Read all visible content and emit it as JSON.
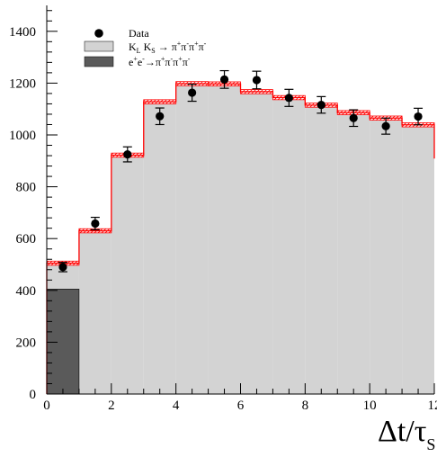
{
  "chart_data": {
    "type": "bar",
    "xlabel": "Δt/τ",
    "xlabel_sub": "S",
    "ylabel": "",
    "xlim": [
      0,
      12
    ],
    "ylim": [
      0,
      1500
    ],
    "x_ticks": [
      0,
      2,
      4,
      6,
      8,
      10,
      12
    ],
    "x_tick_labels": [
      "0",
      "2",
      "4",
      "6",
      "8",
      "10",
      "12"
    ],
    "y_ticks": [
      0,
      200,
      400,
      600,
      800,
      1000,
      1200,
      1400
    ],
    "y_tick_labels": [
      "0",
      "200",
      "400",
      "600",
      "800",
      "1000",
      "1200",
      "1400"
    ],
    "bin_edges": [
      0,
      1,
      2,
      3,
      4,
      5,
      6,
      7,
      8,
      9,
      10,
      11,
      12
    ],
    "series": [
      {
        "name": "Data",
        "kind": "points",
        "x": [
          0.5,
          1.5,
          2.5,
          3.5,
          4.5,
          5.5,
          6.5,
          7.5,
          8.5,
          9.5,
          10.5,
          11.5
        ],
        "values": [
          490,
          658,
          925,
          1072,
          1163,
          1214,
          1212,
          1143,
          1116,
          1065,
          1034,
          1071
        ],
        "errors": [
          18,
          24,
          29,
          32,
          33,
          34,
          34,
          33,
          32,
          32,
          31,
          32
        ]
      },
      {
        "name": "K_L K_S → π⁺π⁻π⁺π⁻",
        "kind": "histogram",
        "values": [
          505,
          630,
          922,
          1128,
          1198,
          1197,
          1167,
          1144,
          1115,
          1086,
          1065,
          1039
        ],
        "band": 8
      },
      {
        "name": "e⁺e⁻→π⁺π⁻π⁺π⁻",
        "kind": "histogram",
        "values": [
          405,
          0,
          0,
          0,
          0,
          0,
          0,
          0,
          0,
          0,
          0,
          0
        ]
      }
    ],
    "legend": {
      "placement": "top-left",
      "entries": [
        {
          "label": "Data",
          "symbol": "marker"
        },
        {
          "label": "K_L K_S → π⁺π⁻π⁺π⁻",
          "symbol": "light-box"
        },
        {
          "label": "e⁺e⁻→π⁺π⁻π⁺π⁻",
          "symbol": "dark-box"
        }
      ]
    },
    "colors": {
      "signal_fill": "#d3d3d3",
      "background_fill": "#5a5a5a",
      "model_line": "#ff0000",
      "data_marker": "#000000"
    }
  }
}
